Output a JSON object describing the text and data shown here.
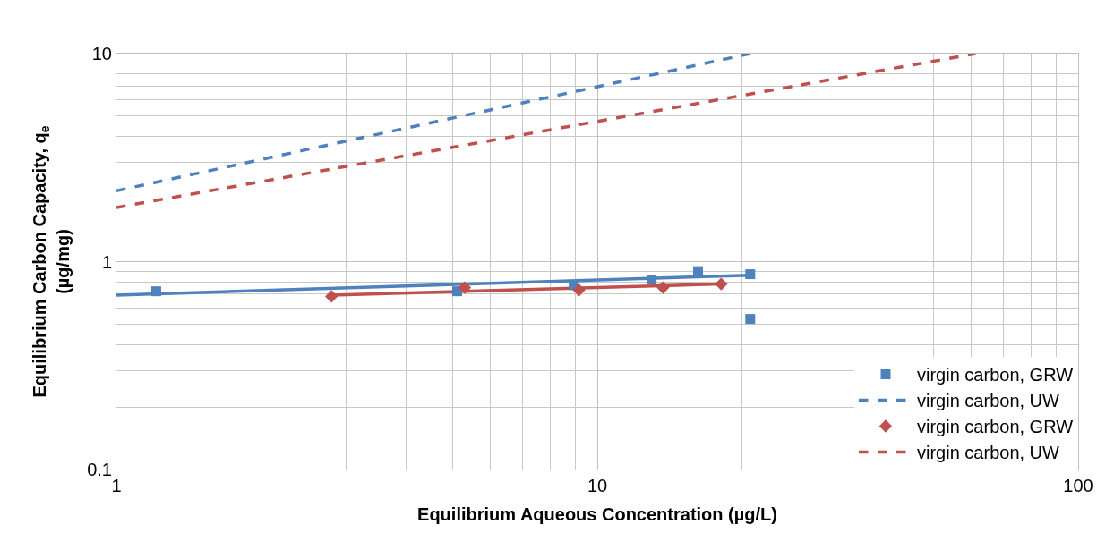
{
  "chart_data": {
    "type": "scatter",
    "xlabel": "Equilibrium Aqueous Concentration (µg/L)",
    "ylabel": "Equilibrium Carbon Capacity, q$_{e}$\n(µg/mg)",
    "log": "xy",
    "grid": true,
    "legend": "bottom right",
    "xlim": [
      1,
      100
    ],
    "xticks": [
      1,
      10,
      100
    ],
    "ylim": [
      0.1,
      10
    ],
    "yticks": [
      0.1,
      1,
      10
    ],
    "series": [
      {
        "name": "virgin carbon, GRW",
        "color": "#4f81bd",
        "marker": "square",
        "x": [
          1.21,
          5.11,
          8.93,
          12.97,
          16.2,
          20.8,
          20.8
        ],
        "values": [
          0.72,
          0.72,
          0.77,
          0.82,
          0.9,
          0.87,
          0.53
        ]
      },
      {
        "type": "line",
        "name": "virgin carbon, UW",
        "color": "#4f81bd",
        "line_style": "dashed",
        "x": [
          1,
          20.8
        ],
        "values": [
          2.19,
          10
        ]
      },
      {
        "name": "virgin carbon, GRW",
        "color": "#c0504d",
        "marker": "diamond",
        "x": [
          2.8,
          5.3,
          9.16,
          13.7,
          18.1
        ],
        "values": [
          0.68,
          0.75,
          0.73,
          0.75,
          0.78
        ]
      },
      {
        "type": "line",
        "name": "virgin carbon, UW",
        "color": "#c0504d",
        "line_style": "dashed",
        "x": [
          1,
          61.2
        ],
        "values": [
          1.82,
          10
        ]
      },
      {
        "type": "line",
        "color": "#4f81bd",
        "line_style": "solid",
        "x": [
          1,
          20.8
        ],
        "values": [
          0.69,
          0.86
        ]
      },
      {
        "type": "line",
        "color": "#c0504d",
        "line_style": "solid",
        "x": [
          2.8,
          18.1
        ],
        "values": [
          0.69,
          0.78
        ]
      }
    ]
  }
}
